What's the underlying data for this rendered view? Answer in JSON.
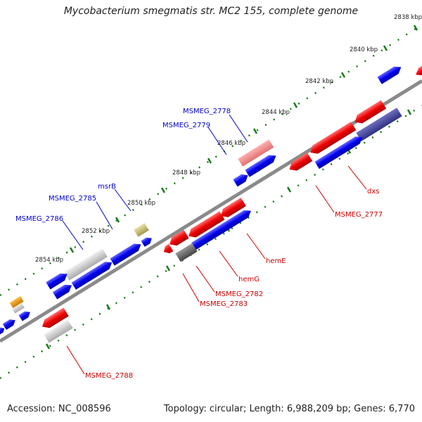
{
  "title": "Mycobacterium smegmatis str. MC2 155, complete genome",
  "footer": {
    "accession": "Accession: NC_008596",
    "summary": "Topology: circular; Length: 6,988,209 bp; Genes: 6,770"
  },
  "colors": {
    "forward_gene": "#0000ee",
    "reverse_gene": "#ee0000",
    "pseudo_gene_light": "#cccccc",
    "pseudo_gene_dark": "#666666",
    "rna_gene": "#e08a00",
    "tick": "#1a7a1a",
    "backbone": "#808080",
    "forward_label": "#0000cc",
    "reverse_label": "#cc0000"
  },
  "kbp_labels": [
    "2838 kbp",
    "2840 kbp",
    "2842 kbp",
    "2844 kbp",
    "2846 kbp",
    "2848 kbp",
    "2850 kbp",
    "2852 kbp",
    "2854 kbp"
  ],
  "forward_genes": [
    "MSMEG_2778",
    "MSMEG_2779",
    "msrB",
    "MSMEG_2785",
    "MSMEG_2786"
  ],
  "reverse_genes": [
    "dxs",
    "MSMEG_2777",
    "hemE",
    "hemG",
    "MSMEG_2782",
    "MSMEG_2783",
    "MSMEG_2788"
  ]
}
